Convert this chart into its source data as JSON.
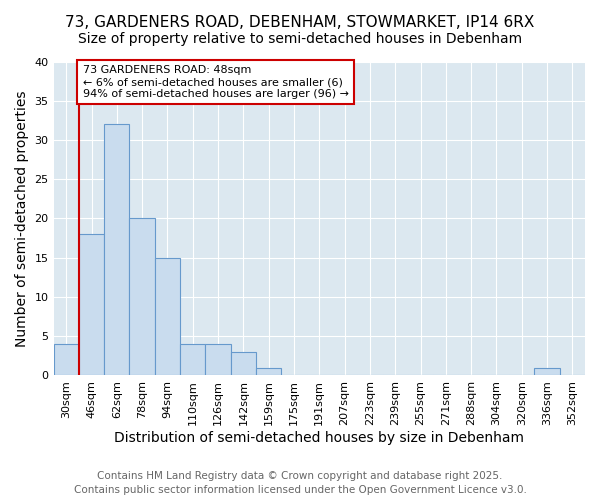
{
  "title_line1": "73, GARDENERS ROAD, DEBENHAM, STOWMARKET, IP14 6RX",
  "title_line2": "Size of property relative to semi-detached houses in Debenham",
  "xlabel": "Distribution of semi-detached houses by size in Debenham",
  "ylabel": "Number of semi-detached properties",
  "categories": [
    "30sqm",
    "46sqm",
    "62sqm",
    "78sqm",
    "94sqm",
    "110sqm",
    "126sqm",
    "142sqm",
    "159sqm",
    "175sqm",
    "191sqm",
    "207sqm",
    "223sqm",
    "239sqm",
    "255sqm",
    "271sqm",
    "288sqm",
    "304sqm",
    "320sqm",
    "336sqm",
    "352sqm"
  ],
  "values": [
    4,
    18,
    32,
    20,
    15,
    4,
    4,
    3,
    1,
    0,
    0,
    0,
    0,
    0,
    0,
    0,
    0,
    0,
    0,
    1,
    0
  ],
  "bar_color": "#c9dcee",
  "bar_edge_color": "#6699cc",
  "redline_index": 1,
  "annotation_line1": "73 GARDENERS ROAD: 48sqm",
  "annotation_line2": "← 6% of semi-detached houses are smaller (6)",
  "annotation_line3": "94% of semi-detached houses are larger (96) →",
  "annotation_box_color": "#ffffff",
  "annotation_edge_color": "#cc0000",
  "redline_color": "#cc0000",
  "ylim": [
    0,
    40
  ],
  "yticks": [
    0,
    5,
    10,
    15,
    20,
    25,
    30,
    35,
    40
  ],
  "footer_line1": "Contains HM Land Registry data © Crown copyright and database right 2025.",
  "footer_line2": "Contains public sector information licensed under the Open Government Licence v3.0.",
  "bg_color": "#ffffff",
  "plot_bg_color": "#dce8f0",
  "grid_color": "#ffffff",
  "title_fontsize": 11,
  "subtitle_fontsize": 10,
  "axis_label_fontsize": 10,
  "tick_fontsize": 8,
  "footer_fontsize": 7.5,
  "annotation_fontsize": 8
}
